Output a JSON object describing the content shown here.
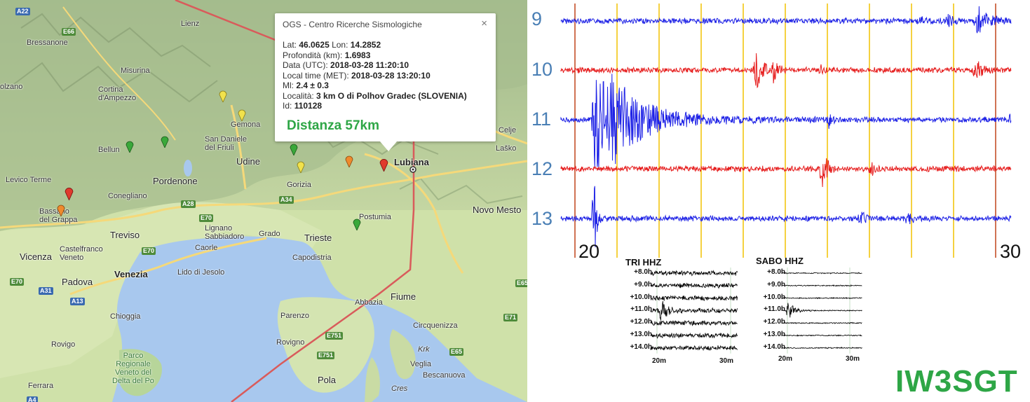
{
  "map": {
    "places": [
      {
        "id": "lienz",
        "label": "Lienz"
      },
      {
        "id": "bressanone",
        "label": "Bressanone"
      },
      {
        "id": "misurina",
        "label": "Misurina"
      },
      {
        "id": "cortina",
        "label": "Cortina\nd'Ampezzo"
      },
      {
        "id": "bolzano",
        "label": "olzano"
      },
      {
        "id": "gemona",
        "label": "Gemona"
      },
      {
        "id": "sandaniele",
        "label": "San Daniele\ndel Friuli"
      },
      {
        "id": "belluno",
        "label": "Bellun"
      },
      {
        "id": "udine",
        "label": "Udine"
      },
      {
        "id": "pordenone",
        "label": "Pordenone"
      },
      {
        "id": "levico",
        "label": "Levico Terme"
      },
      {
        "id": "conegliano",
        "label": "Conegliano"
      },
      {
        "id": "bassano",
        "label": "Bassano\ndel Grappa"
      },
      {
        "id": "gorizia",
        "label": "Gorizia"
      },
      {
        "id": "lubiana",
        "label": "Lubiana"
      },
      {
        "id": "celje",
        "label": "Celje"
      },
      {
        "id": "lasko",
        "label": "Laško"
      },
      {
        "id": "novomesto",
        "label": "Novo Mesto"
      },
      {
        "id": "postumia",
        "label": "Postumia"
      },
      {
        "id": "treviso",
        "label": "Treviso"
      },
      {
        "id": "lignano",
        "label": "Lignano\nSabbiadoro"
      },
      {
        "id": "grado",
        "label": "Grado"
      },
      {
        "id": "trieste",
        "label": "Trieste"
      },
      {
        "id": "caorle",
        "label": "Caorle"
      },
      {
        "id": "castelfranco",
        "label": "Castelfranco\nVeneto"
      },
      {
        "id": "capodistria",
        "label": "Capodistria"
      },
      {
        "id": "vicenza",
        "label": "Vicenza"
      },
      {
        "id": "venezia",
        "label": "Venezia"
      },
      {
        "id": "lido",
        "label": "Lido di Jesolo"
      },
      {
        "id": "padova",
        "label": "Padova"
      },
      {
        "id": "abbazia",
        "label": "Abbazia"
      },
      {
        "id": "fiume",
        "label": "Fiume"
      },
      {
        "id": "chioggia",
        "label": "Chioggia"
      },
      {
        "id": "parenzo",
        "label": "Parenzo"
      },
      {
        "id": "circuniezza",
        "label": "Circquenizza"
      },
      {
        "id": "rovigno",
        "label": "Rovigno"
      },
      {
        "id": "krk",
        "label": "Krk"
      },
      {
        "id": "veglia",
        "label": "Veglia"
      },
      {
        "id": "rovigo",
        "label": "Rovigo"
      },
      {
        "id": "parco",
        "label": "Parco\nRegionale\nVeneto del\nDelta del Po"
      },
      {
        "id": "baska",
        "label": "Bescanuova"
      },
      {
        "id": "ferrara",
        "label": "Ferrara"
      },
      {
        "id": "pola",
        "label": "Pola"
      },
      {
        "id": "cres",
        "label": "Cres"
      }
    ],
    "roads": [
      "A22",
      "E66",
      "A28",
      "A34",
      "E70",
      "E70",
      "E70",
      "A31",
      "A13",
      "E751",
      "E751",
      "E65",
      "E65",
      "E71",
      "A4"
    ],
    "popup": {
      "title": "OGS - Centro Ricerche Sismologiche",
      "close": "×",
      "rows": [
        {
          "label": "Lat: ",
          "value": "46.0625",
          "label2": " Lon: ",
          "value2": "14.2852"
        },
        {
          "label": "Profondità (km): ",
          "value": "1.6983"
        },
        {
          "label": "Data (UTC): ",
          "value": "2018-03-28 11:20:10"
        },
        {
          "label": "Local time (MET): ",
          "value": "2018-03-28 13:20:10"
        },
        {
          "label": "Ml: ",
          "value": "2.4 ± 0.3"
        },
        {
          "label": "Località: ",
          "value": "3 km O di Polhov Gradec (SLOVENIA)"
        },
        {
          "label": "Id: ",
          "value": "110128"
        }
      ],
      "distance": "Distanza 57km"
    }
  },
  "seismo": {
    "channels": [
      "9",
      "10",
      "11",
      "12",
      "13"
    ],
    "x_start": "20",
    "x_end": "30",
    "colors": {
      "blue": "#1e22e6",
      "red": "#e61e1e",
      "grid": "#f2c200",
      "edge": "#c0441a"
    },
    "mini": [
      {
        "title": "TRI HHZ",
        "rows": [
          "+8.0h",
          "+9.0h",
          "+10.0h",
          "+11.0h",
          "+12.0h",
          "+13.0h",
          "+14.0h"
        ],
        "x": [
          "20m",
          "30m"
        ]
      },
      {
        "title": "SABO HHZ",
        "rows": [
          "+8.0h",
          "+9.0h",
          "+10.0h",
          "+11.0h",
          "+12.0h",
          "+13.0h",
          "+14.0h"
        ],
        "x": [
          "20m",
          "30m"
        ]
      }
    ],
    "callsign": "IW3SGT"
  }
}
